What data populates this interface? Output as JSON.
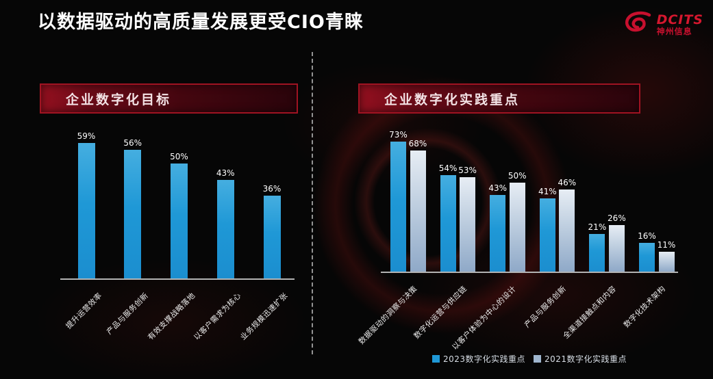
{
  "page_title": "以数据驱动的高质量发展更受CIO青睐",
  "logo": {
    "brand": "DCITS",
    "subtitle": "神州信息",
    "icon": "swirl-comet-icon",
    "color": "#c8102e"
  },
  "colors": {
    "bar_2023_blue": "#1f98d6",
    "bar_2021_light": "#9fb6ce",
    "banner_red": "#94101f",
    "axis_gray": "#b3b3b3",
    "title_white": "#ffffff"
  },
  "chart_data": [
    {
      "id": "goals",
      "type": "bar",
      "title": "企业数字化目标",
      "categories": [
        "提升运营效率",
        "产品与服务创新",
        "有效支撑战略落地",
        "以客户需求为核心",
        "业务规模迅速扩张"
      ],
      "values": [
        59,
        56,
        50,
        43,
        36
      ],
      "unit": "%",
      "xlabel": "",
      "ylabel": "",
      "ylim": [
        0,
        63
      ],
      "grid": false,
      "bar_color": "#1f98d6",
      "value_labels_shown": true
    },
    {
      "id": "practices",
      "type": "bar",
      "title": "企业数字化实践重点",
      "categories": [
        "数据驱动的洞察与决策",
        "数字化运营与供应链",
        "以客户体验为中心的设计",
        "产品与服务创新",
        "全渠道接触点和内容",
        "数字化技术架构"
      ],
      "series": [
        {
          "name": "2023数字化实践重点",
          "values": [
            73,
            54,
            43,
            41,
            21,
            16
          ],
          "color": "#1f98d6"
        },
        {
          "name": "2021数字化实践重点",
          "values": [
            68,
            53,
            50,
            46,
            26,
            11
          ],
          "color": "#9fb6ce"
        }
      ],
      "unit": "%",
      "xlabel": "",
      "ylabel": "",
      "ylim": [
        0,
        78
      ],
      "grid": false,
      "legend_position": "bottom",
      "value_labels_shown": true
    }
  ]
}
